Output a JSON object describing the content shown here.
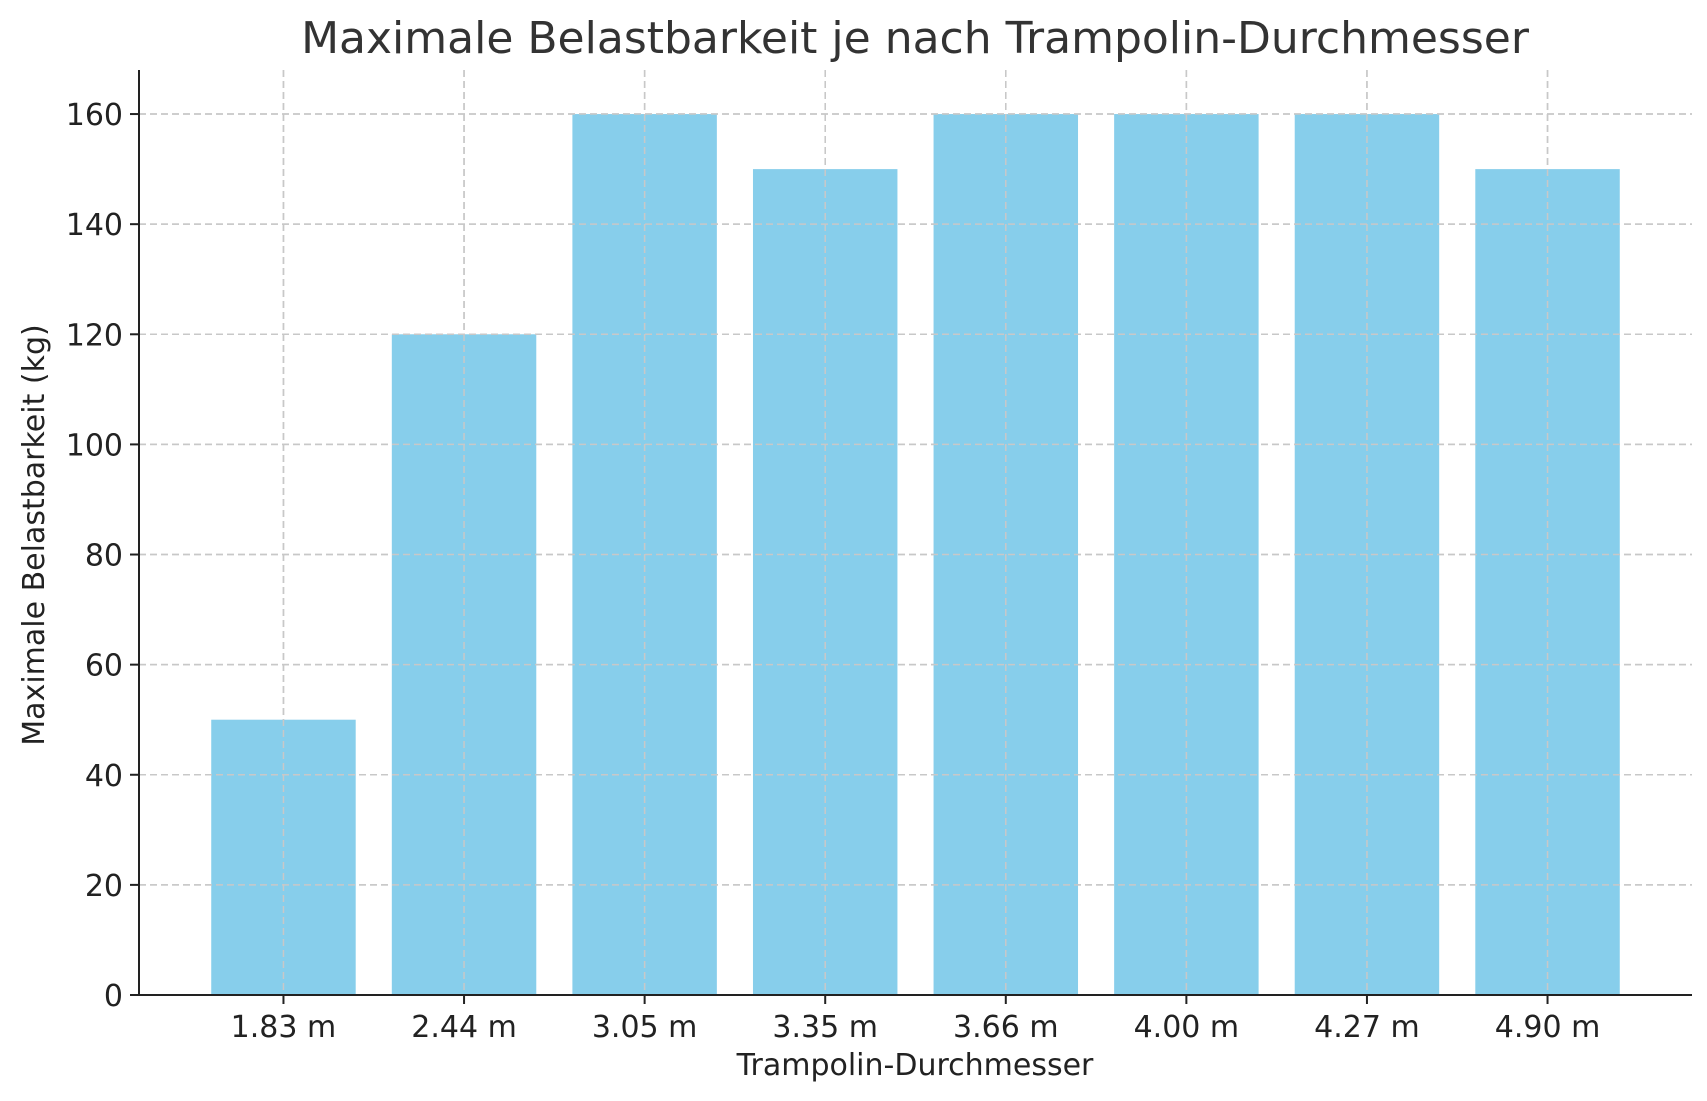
{
  "chart_data": {
    "type": "bar",
    "title": "Maximale Belastbarkeit je nach Trampolin-Durchmesser",
    "xlabel": "Trampolin-Durchmesser",
    "ylabel": "Maximale Belastbarkeit (kg)",
    "categories": [
      "1.83 m",
      "2.44 m",
      "3.05 m",
      "3.35 m",
      "3.66 m",
      "4.00 m",
      "4.27 m",
      "4.90 m"
    ],
    "values": [
      50,
      120,
      160,
      150,
      160,
      160,
      160,
      150
    ],
    "ylim": [
      0,
      168
    ],
    "yticks": [
      0,
      20,
      40,
      60,
      80,
      100,
      120,
      140,
      160
    ],
    "grid": true,
    "bar_color": "#87CEEB"
  }
}
